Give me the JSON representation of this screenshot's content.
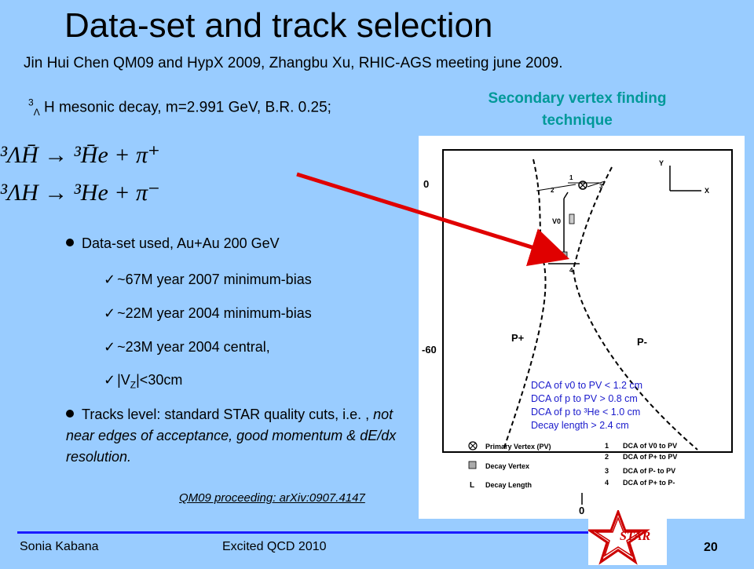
{
  "title": "Data-set and track selection",
  "authors_line": "Jin Hui Chen QM09 and HypX 2009,  Zhangbu Xu, RHIC-AGS meeting june 2009.",
  "decay": {
    "sup": "3",
    "sub": "Λ",
    "text": "H mesonic decay, m=2.991 GeV, B.R. 0.25;"
  },
  "sv_title": "Secondary vertex finding technique",
  "equations": {
    "eq1": "³ΛH̄ → ³H̄e + π⁺",
    "eq2": "³ΛH → ³He + π⁻"
  },
  "bullets": {
    "dataset": "Data-set used, Au+Au 200 GeV",
    "items": [
      "~67M year 2007 minimum-bias",
      "~22M year 2004 minimum-bias",
      "~23M year 2004 central,"
    ],
    "vz_pre": "|V",
    "vz_sub": "Z",
    "vz_post": "|<30cm",
    "tracks_a": "Tracks level: standard STAR quality cuts, i.e. , ",
    "tracks_b": "not near edges of acceptance, good momentum & dE/dx resolution."
  },
  "reference": "QM09 proceeding: arXiv:0907.4147",
  "diagram": {
    "y_label": "Y",
    "x_label": "X",
    "axis_ticks": [
      "0",
      "-60",
      "0"
    ],
    "v0_label": "V0",
    "numbers": [
      "1",
      "2",
      "3",
      "4"
    ],
    "p_plus": "P+",
    "p_minus": "P-",
    "dca_lines": [
      "DCA of v0 to PV < 1.2 cm",
      "DCA of p to PV > 0.8 cm",
      "DCA of p to ³He < 1.0 cm",
      "Decay length > 2.4 cm"
    ],
    "legend_left": [
      "Primary Vertex (PV)",
      "Decay Vertex",
      "Decay Length"
    ],
    "legend_l": "L",
    "legend_right": [
      "DCA of V0 to PV",
      "DCA of P+ to PV",
      "DCA of P- to PV",
      "DCA of P+ to P-"
    ]
  },
  "footer": {
    "author": "Sonia Kabana",
    "conference": "Excited QCD 2010",
    "page": "20",
    "logo_text": "STAR"
  },
  "colors": {
    "background": "#99ccff",
    "accent": "#009999",
    "arrow": "#e00000",
    "footer_line": "#1a1aff"
  }
}
